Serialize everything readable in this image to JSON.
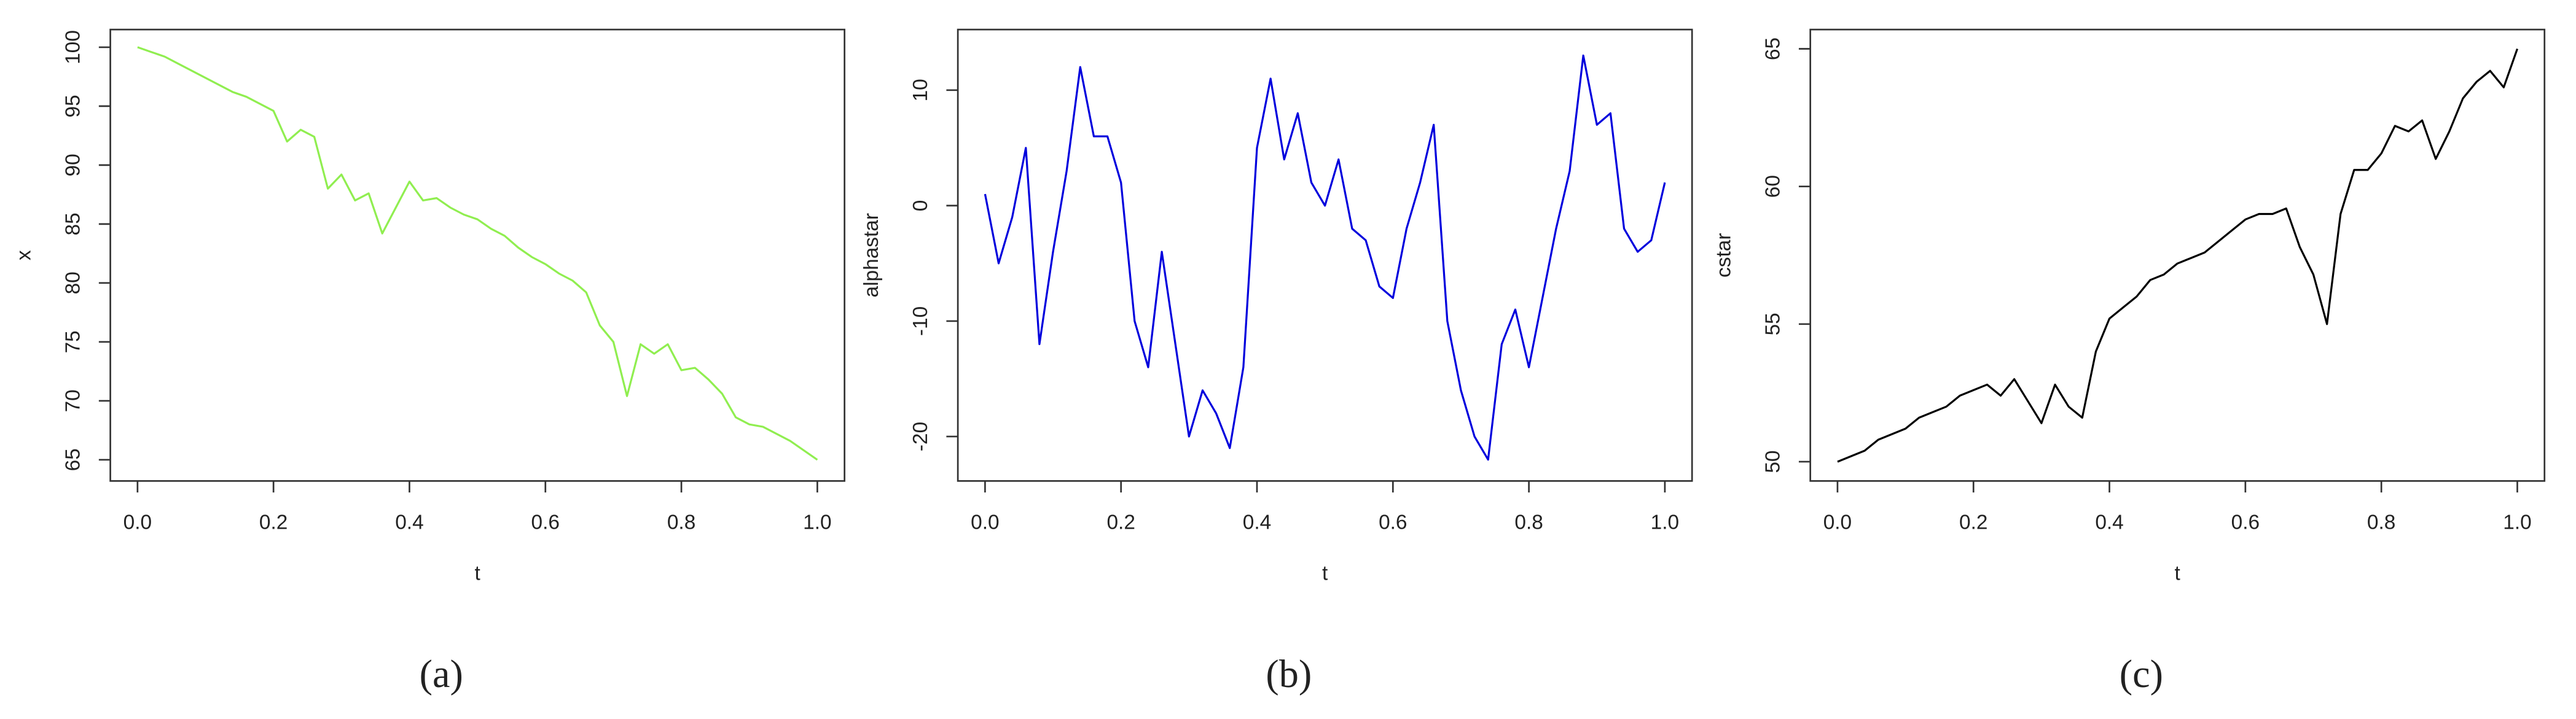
{
  "chart_data": [
    {
      "type": "line",
      "caption": "(a)",
      "xlabel": "t",
      "ylabel": "x",
      "color": "#90ee50",
      "x": [
        0,
        0.02,
        0.04,
        0.06,
        0.08,
        0.1,
        0.12,
        0.14,
        0.16,
        0.18,
        0.2,
        0.22,
        0.24,
        0.26,
        0.28,
        0.3,
        0.32,
        0.34,
        0.36,
        0.38,
        0.4,
        0.42,
        0.44,
        0.46,
        0.48,
        0.5,
        0.52,
        0.54,
        0.56,
        0.58,
        0.6,
        0.62,
        0.64,
        0.66,
        0.68,
        0.7,
        0.72,
        0.74,
        0.76,
        0.78,
        0.8,
        0.82,
        0.84,
        0.86,
        0.88,
        0.9,
        0.92,
        0.94,
        0.96,
        0.98,
        1
      ],
      "values": [
        100,
        99.6,
        99.2,
        98.6,
        98,
        97.4,
        96.8,
        96.2,
        95.8,
        95.2,
        94.6,
        92,
        93,
        92.4,
        88,
        89.2,
        87,
        87.6,
        84.2,
        86.4,
        88.6,
        87,
        87.2,
        86.4,
        85.8,
        85.4,
        84.6,
        84,
        83,
        82.2,
        81.6,
        80.8,
        80.2,
        79.2,
        76.4,
        75,
        70.4,
        74.8,
        74,
        74.8,
        72.6,
        72.8,
        71.8,
        70.6,
        68.6,
        68,
        67.8,
        67.2,
        66.6,
        65.8,
        65
      ],
      "xlim": [
        -0.04,
        1.04
      ],
      "ylim": [
        63.2,
        101.5
      ],
      "xticks": [
        {
          "value": 0,
          "label": "0.0"
        },
        0.2,
        0.4,
        0.6,
        0.8,
        {
          "value": 1,
          "label": "1.0"
        }
      ],
      "yticks": [
        65,
        70,
        75,
        80,
        85,
        90,
        95,
        100
      ]
    },
    {
      "type": "line",
      "caption": "(b)",
      "xlabel": "t",
      "ylabel": "alphastar",
      "color": "#0000dd",
      "x": [
        0,
        0.02,
        0.04,
        0.06,
        0.08,
        0.1,
        0.12,
        0.14,
        0.16,
        0.18,
        0.2,
        0.22,
        0.24,
        0.26,
        0.28,
        0.3,
        0.32,
        0.34,
        0.36,
        0.38,
        0.4,
        0.42,
        0.44,
        0.46,
        0.48,
        0.5,
        0.52,
        0.54,
        0.56,
        0.58,
        0.6,
        0.62,
        0.64,
        0.66,
        0.68,
        0.7,
        0.72,
        0.74,
        0.76,
        0.78,
        0.8,
        0.82,
        0.84,
        0.86,
        0.88,
        0.9,
        0.92,
        0.94,
        0.96,
        0.98,
        1
      ],
      "values": [
        1,
        -5,
        -1,
        5,
        -12,
        -4,
        3,
        12,
        6,
        6,
        2,
        -10,
        -14,
        -4,
        -12,
        -20,
        -16,
        -18,
        -21,
        -14,
        5,
        11,
        4,
        8,
        2,
        0,
        4,
        -2,
        -3,
        -7,
        -8,
        -2,
        2,
        7,
        -10,
        -16,
        -20,
        -22,
        -12,
        -9,
        -14,
        -8,
        -2,
        3,
        13,
        7,
        8,
        -2,
        -4,
        -3,
        2
      ],
      "xlim": [
        -0.04,
        1.04
      ],
      "ylim": [
        -23.85,
        15.25
      ],
      "xticks": [
        {
          "value": 0,
          "label": "0.0"
        },
        0.2,
        0.4,
        0.6,
        0.8,
        {
          "value": 1,
          "label": "1.0"
        }
      ],
      "yticks": [
        -20,
        -10,
        0,
        10
      ]
    },
    {
      "type": "line",
      "caption": "(c)",
      "xlabel": "t",
      "ylabel": "cstar",
      "color": "#000000",
      "x": [
        0,
        0.02,
        0.04,
        0.06,
        0.08,
        0.1,
        0.12,
        0.14,
        0.16,
        0.18,
        0.2,
        0.22,
        0.24,
        0.26,
        0.28,
        0.3,
        0.32,
        0.34,
        0.36,
        0.38,
        0.4,
        0.42,
        0.44,
        0.46,
        0.48,
        0.5,
        0.52,
        0.54,
        0.56,
        0.58,
        0.6,
        0.62,
        0.64,
        0.66,
        0.68,
        0.7,
        0.72,
        0.74,
        0.76,
        0.78,
        0.8,
        0.82,
        0.84,
        0.86,
        0.88,
        0.9,
        0.92,
        0.94,
        0.96,
        0.98,
        1
      ],
      "values": [
        50,
        50.2,
        50.4,
        50.8,
        51,
        51.2,
        51.6,
        51.8,
        52,
        52.4,
        52.6,
        52.8,
        52.4,
        53,
        52.2,
        51.4,
        52.8,
        52,
        51.6,
        54,
        55.2,
        55.6,
        56,
        56.6,
        56.8,
        57.2,
        57.4,
        57.6,
        58,
        58.4,
        58.8,
        59,
        59,
        59.2,
        57.8,
        56.8,
        55,
        59,
        60.6,
        60.6,
        61.2,
        62.2,
        62,
        62.4,
        61,
        62,
        63.2,
        63.8,
        64.2,
        63.6,
        65
      ],
      "xlim": [
        -0.04,
        1.04
      ],
      "ylim": [
        49.3,
        65.7
      ],
      "xticks": [
        {
          "value": 0,
          "label": "0.0"
        },
        0.2,
        0.4,
        0.6,
        0.8,
        {
          "value": 1,
          "label": "1.0"
        }
      ],
      "yticks": [
        50,
        55,
        60,
        65
      ]
    }
  ]
}
